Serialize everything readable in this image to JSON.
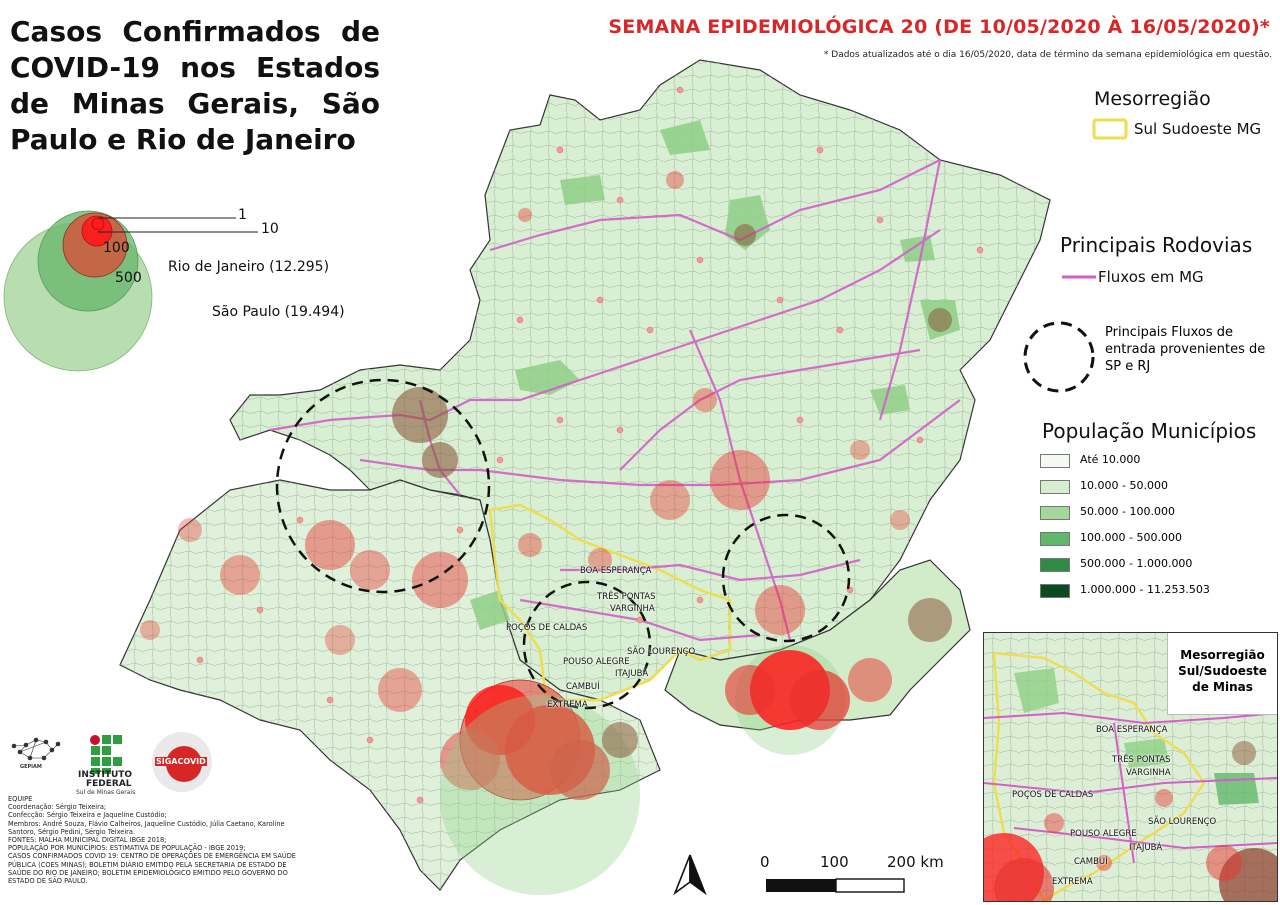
{
  "title": "Casos Confirmados de COVID-19 nos Estados de Minas Gerais, São Paulo e Rio de Janeiro",
  "week_title": "SEMANA EPIDEMIOLÓGICA 20 (DE 10/05/2020 À 16/05/2020)*",
  "week_note": "* Dados atualizados até o dia 16/05/2020, data de término da semana epidemiológica em questão.",
  "bubble_legend": {
    "values": [
      "1",
      "10",
      "100",
      "500"
    ],
    "rio": "Rio de Janeiro (12.295)",
    "sp": "São Paulo (19.494)"
  },
  "mesorregiao": {
    "heading": "Mesorregião",
    "item": "Sul Sudoeste MG",
    "color": "#f0e05a"
  },
  "rodovias": {
    "heading": "Principais Rodovias",
    "item": "Fluxos em MG",
    "color": "#d35fc9"
  },
  "fluxos": {
    "label": "Principais Fluxos de entrada provenientes de SP e RJ"
  },
  "populacao": {
    "heading": "População Municípios",
    "classes": [
      {
        "label": "Até 10.000",
        "color": "#f4faf2"
      },
      {
        "label": "10.000 - 50.000",
        "color": "#d6eed0"
      },
      {
        "label": "50.000 - 100.000",
        "color": "#a3d89a"
      },
      {
        "label": "100.000 - 500.000",
        "color": "#62b86a"
      },
      {
        "label": "500.000 - 1.000.000",
        "color": "#2e8c47"
      },
      {
        "label": "1.000.000 - 11.253.503",
        "color": "#0b4a1f"
      }
    ]
  },
  "cities": {
    "boa_esperanca": "BOA ESPERANÇA",
    "tres_pontas": "TRÊS PONTAS",
    "varginha": "VARGINHA",
    "pocos_de_caldas": "POÇOS DE CALDAS",
    "sao_lourenco": "SÃO LOURENÇO",
    "pouso_alegre": "POUSO ALEGRE",
    "itajuba": "ITAJUBÁ",
    "cambui": "CAMBUÍ",
    "extrema": "EXTREMA"
  },
  "inset_title": "Mesorregião Sul/Sudoeste de Minas",
  "scale": {
    "labels": [
      "0",
      "100",
      "200 km"
    ]
  },
  "logos": {
    "gepiam": "GEPIAM",
    "instituto": "INSTITUTO",
    "federal": "FEDERAL",
    "campus": "Sul de Minas Gerais",
    "siga": "SIGACOVID"
  },
  "credits": [
    "EQUIPE",
    "Coordenação: Sérgio Teixeira;",
    "Confecção: Sérgio Teixeira e Jaqueline Custódio;",
    "Membros: André Souza, Flávio Calheiros, Jaqueline Custódio, Júlia Caetano, Karoline Santoro, Sérgio Pedini, Sérgio Teixeira.",
    "FONTES: MALHA MUNICIPAL DIGITAL IBGE 2018;",
    "POPULAÇÃO POR MUNICÍPIOS: ESTIMATIVA DE POPULAÇÃO - IBGE 2019;",
    "CASOS CONFIRMADOS COVID 19: CENTRO DE OPERAÇÕES DE EMERGÊNCIA EM SAÚDE PÚBLICA (COES MINAS); BOLETIM DIÁRIO EMITIDO PELA SECRETARIA DE ESTADO DE SAÚDE DO RIO DE JANEIRO; BOLETIM EPIDEMIOLÓGICO EMITIDO PELO GOVERNO DO ESTADO DE SÃO PAULO."
  ]
}
